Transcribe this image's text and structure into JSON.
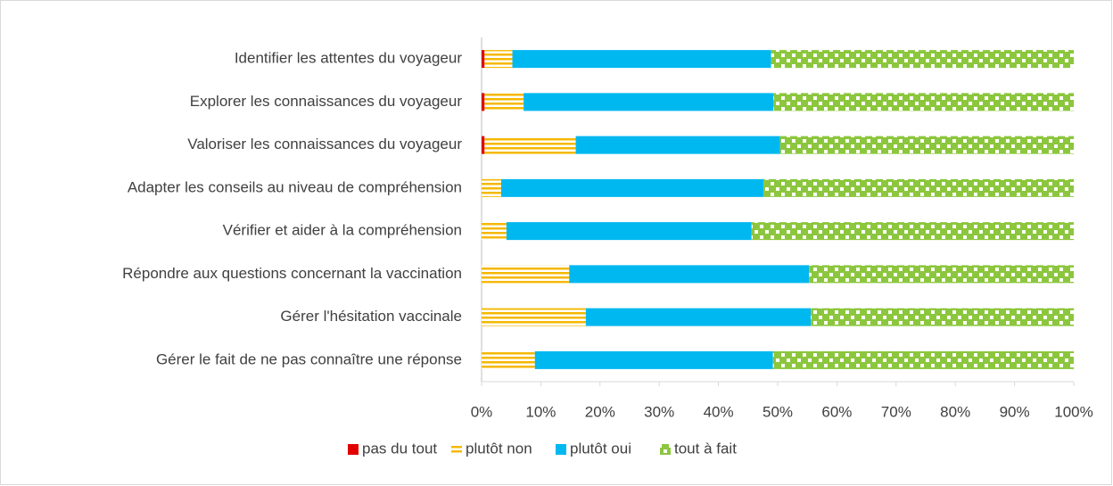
{
  "chart_data": {
    "type": "stacked-barh",
    "categories": [
      "Identifier les attentes du voyageur",
      "Explorer les connaissances du voyageur",
      "Valoriser les connaissances du voyageur",
      "Adapter les conseils au niveau de compréhension",
      "Vérifier et aider à la compréhension",
      "Répondre aux questions concernant la vaccination",
      "Gérer l'hésitation vaccinale",
      "Gérer le fait de ne pas connaître une réponse"
    ],
    "series": [
      {
        "name": "pas du tout",
        "color": "#e00000",
        "pattern": "solid",
        "values": [
          0.5,
          0.5,
          0.5,
          0,
          0,
          0,
          0,
          0
        ]
      },
      {
        "name": "plutôt non",
        "color": "#f5b800",
        "pattern": "horizontal-stripes",
        "values": [
          4.7,
          6.6,
          15.4,
          3.3,
          4.2,
          14.8,
          17.6,
          9
        ]
      },
      {
        "name": "plutôt oui",
        "color": "#00b8f0",
        "pattern": "solid",
        "values": [
          43.7,
          42.2,
          34.5,
          44.3,
          41.4,
          40.5,
          38,
          40.2
        ]
      },
      {
        "name": "tout à fait",
        "color": "#8cc63e",
        "pattern": "checker",
        "values": [
          51.1,
          50.7,
          49.6,
          52.4,
          54.4,
          44.7,
          44.4,
          50.8
        ]
      }
    ],
    "xlim": [
      0,
      100
    ],
    "xticks": [
      {
        "value": 0,
        "label": "0%"
      },
      {
        "value": 10,
        "label": "10%"
      },
      {
        "value": 20,
        "label": "20%"
      },
      {
        "value": 30,
        "label": "30%"
      },
      {
        "value": 40,
        "label": "40%"
      },
      {
        "value": 50,
        "label": "50%"
      },
      {
        "value": 60,
        "label": "60%"
      },
      {
        "value": 70,
        "label": "70%"
      },
      {
        "value": 80,
        "label": "80%"
      },
      {
        "value": 90,
        "label": "90%"
      },
      {
        "value": 100,
        "label": "100%"
      }
    ],
    "legend": "bottom"
  }
}
